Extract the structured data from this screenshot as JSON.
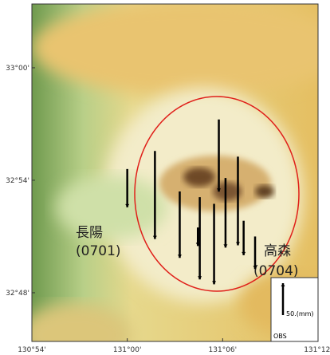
{
  "map": {
    "lonlim": [
      130.9,
      131.2
    ],
    "latlim": [
      32.7567,
      33.0567
    ],
    "lonticks": [
      {
        "value": 130.9,
        "label": "130°54'"
      },
      {
        "value": 131.0,
        "label": "131°00'"
      },
      {
        "value": 131.1,
        "label": "131°06'"
      },
      {
        "value": 131.2,
        "label": "131°12'"
      }
    ],
    "latticks": [
      {
        "value": 33.0,
        "label": "33°00'"
      },
      {
        "value": 32.9,
        "label": "32°54'"
      },
      {
        "value": 32.8,
        "label": "32°48'"
      }
    ],
    "places": [
      {
        "name": "長陽",
        "code": "(0701)"
      },
      {
        "name": "高森",
        "code": "(0704)"
      }
    ],
    "vectors": [
      {
        "lon": 131.0,
        "lat": 32.91,
        "dn": -60
      },
      {
        "lon": 131.029,
        "lat": 32.926,
        "dn": -138
      },
      {
        "lon": 131.055,
        "lat": 32.89,
        "dn": -104
      },
      {
        "lon": 131.074,
        "lat": 32.858,
        "dn": -29
      },
      {
        "lon": 131.076,
        "lat": 32.885,
        "dn": -129
      },
      {
        "lon": 131.091,
        "lat": 32.879,
        "dn": -126
      },
      {
        "lon": 131.096,
        "lat": 32.954,
        "dn": -113
      },
      {
        "lon": 131.103,
        "lat": 32.902,
        "dn": -109
      },
      {
        "lon": 131.116,
        "lat": 32.921,
        "dn": -139
      },
      {
        "lon": 131.122,
        "lat": 32.864,
        "dn": -54
      },
      {
        "lon": 131.134,
        "lat": 32.85,
        "dn": -51
      }
    ],
    "legend": {
      "scale": {
        "value": 50,
        "label": "50.(mm)"
      },
      "station": "OBS"
    }
  }
}
